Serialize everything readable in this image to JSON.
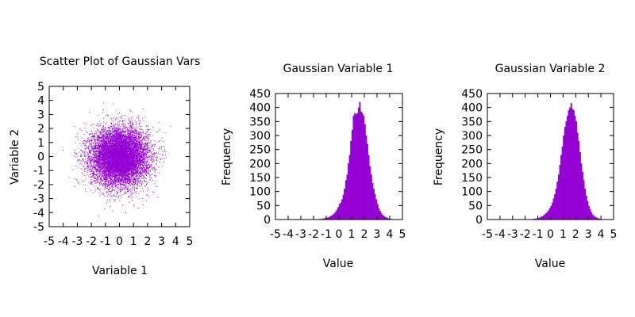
{
  "chart_data": [
    {
      "type": "scatter",
      "title": "Scatter Plot of Gaussian Vars",
      "xlabel": "Variable 1",
      "ylabel": "Variable 2",
      "xlim": [
        -5,
        5
      ],
      "ylim": [
        -5,
        5
      ],
      "xticks": [
        -5,
        -4,
        -3,
        -2,
        -1,
        0,
        1,
        2,
        3,
        4,
        5
      ],
      "yticks": [
        -5,
        -4,
        -3,
        -2,
        -1,
        0,
        1,
        2,
        3,
        4,
        5
      ],
      "point_count": 10000,
      "mean": [
        0,
        0
      ],
      "std": [
        1,
        1
      ],
      "color": "#9400d3"
    },
    {
      "type": "bar",
      "title": "Gaussian Variable 1",
      "xlabel": "Value",
      "ylabel": "Frequency",
      "xlim": [
        -5,
        5
      ],
      "ylim": [
        0,
        450
      ],
      "xticks": [
        -5,
        -4,
        -3,
        -2,
        -1,
        0,
        1,
        2,
        3,
        4,
        5
      ],
      "yticks": [
        0,
        50,
        100,
        150,
        200,
        250,
        300,
        350,
        400,
        450
      ],
      "bin_start": -5,
      "bin_width": 0.1,
      "values": [
        0,
        0,
        0,
        0,
        0,
        0,
        0,
        0,
        0,
        0,
        0,
        0,
        0,
        0,
        0,
        0,
        0,
        0,
        0,
        0,
        0,
        0,
        0,
        0,
        0,
        0,
        0,
        0,
        0,
        0,
        0,
        0,
        0,
        0,
        1,
        2,
        1,
        3,
        3,
        5,
        6,
        7,
        9,
        12,
        14,
        18,
        22,
        28,
        35,
        44,
        55,
        60,
        72,
        88,
        110,
        140,
        160,
        200,
        230,
        280,
        320,
        370,
        380,
        375,
        380,
        400,
        420,
        385,
        380,
        370,
        340,
        300,
        270,
        230,
        190,
        160,
        130,
        110,
        90,
        72,
        55,
        40,
        30,
        22,
        16,
        12,
        9,
        7,
        5,
        3,
        2,
        1,
        1,
        0,
        0,
        0,
        0,
        0,
        0,
        0
      ],
      "color": "#9400d3"
    },
    {
      "type": "bar",
      "title": "Gaussian Variable 2",
      "xlabel": "Value",
      "ylabel": "Frequency",
      "xlim": [
        -5,
        5
      ],
      "ylim": [
        0,
        450
      ],
      "xticks": [
        -5,
        -4,
        -3,
        -2,
        -1,
        0,
        1,
        2,
        3,
        4,
        5
      ],
      "yticks": [
        0,
        50,
        100,
        150,
        200,
        250,
        300,
        350,
        400,
        450
      ],
      "bin_start": -5,
      "bin_width": 0.1,
      "values": [
        0,
        0,
        0,
        0,
        0,
        0,
        0,
        0,
        0,
        0,
        0,
        0,
        0,
        0,
        0,
        0,
        0,
        0,
        0,
        0,
        0,
        0,
        0,
        0,
        0,
        0,
        0,
        0,
        0,
        0,
        0,
        0,
        0,
        0,
        0,
        1,
        2,
        2,
        3,
        4,
        5,
        7,
        9,
        11,
        14,
        18,
        22,
        26,
        32,
        40,
        48,
        60,
        75,
        90,
        110,
        135,
        160,
        195,
        230,
        260,
        300,
        330,
        350,
        370,
        390,
        400,
        415,
        395,
        390,
        370,
        350,
        310,
        280,
        240,
        200,
        170,
        140,
        110,
        85,
        65,
        48,
        36,
        26,
        18,
        13,
        9,
        7,
        5,
        3,
        2,
        1,
        1,
        1,
        0,
        0,
        0,
        0,
        0,
        0,
        0
      ],
      "color": "#9400d3"
    }
  ]
}
